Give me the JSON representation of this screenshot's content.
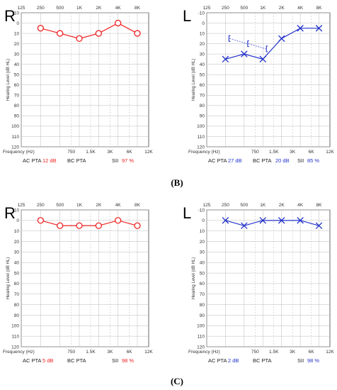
{
  "panel_labels": [
    "(B)",
    "(C)"
  ],
  "colors": {
    "right": "#ee2222",
    "left": "#2233cc"
  },
  "chart_data": [
    {
      "type": "line",
      "side": "R",
      "marker": "circle",
      "color": "#ee2222",
      "xlabel": "Frequency (Hz)",
      "ylabel": "Hearing Level (dB HL)",
      "top_ticks": [
        "125",
        "250",
        "500",
        "1K",
        "2K",
        "4K",
        "8K"
      ],
      "bottom_ticks": [
        "750",
        "1.5K",
        "3K",
        "6K",
        "12K"
      ],
      "ylim": [
        -10,
        120
      ],
      "y_ticks": [
        -10,
        0,
        10,
        20,
        30,
        40,
        50,
        60,
        70,
        80,
        90,
        100,
        110,
        120
      ],
      "y_tick_labels": [
        "-10",
        "0",
        "10",
        "20",
        "30",
        "40",
        "50",
        "60",
        "70",
        "80",
        "90",
        "100",
        "110",
        "120"
      ],
      "grid": true,
      "series": [
        {
          "x": [
            "250",
            "500",
            "1K",
            "2K",
            "4K",
            "8K"
          ],
          "values": [
            5,
            10,
            15,
            10,
            0,
            10
          ]
        }
      ],
      "stats": [
        {
          "label": "AC PTA",
          "value": "12 dB"
        },
        {
          "label": "BC PTA",
          "value": ""
        },
        {
          "label": "SII",
          "value": "97 %"
        }
      ]
    },
    {
      "type": "line",
      "side": "L",
      "marker": "x",
      "color": "#2233cc",
      "xlabel": "Frequency (Hz)",
      "ylabel": "Hearing Level (dB HL)",
      "top_ticks": [
        "125",
        "250",
        "500",
        "1K",
        "2K",
        "4K",
        "8K"
      ],
      "bottom_ticks": [
        "750",
        "1.5K",
        "3K",
        "6K",
        "12K"
      ],
      "ylim": [
        -10,
        120
      ],
      "y_ticks": [
        -10,
        0,
        10,
        20,
        30,
        40,
        50,
        60,
        70,
        80,
        90,
        100,
        110,
        120
      ],
      "y_tick_labels": [
        "-10",
        "0",
        "10",
        "20",
        "30",
        "40",
        "50",
        "60",
        "70",
        "80",
        "90",
        "100",
        "110",
        "120"
      ],
      "grid": true,
      "series": [
        {
          "x": [
            "250",
            "500",
            "1K",
            "2K",
            "4K",
            "8K"
          ],
          "values": [
            35,
            30,
            35,
            15,
            5,
            5
          ]
        }
      ],
      "bone_conduction": {
        "marker": "bracket",
        "x": [
          "250",
          "500",
          "1K"
        ],
        "values": [
          15,
          20,
          25
        ]
      },
      "stats": [
        {
          "label": "AC PTA",
          "value": "27 dB"
        },
        {
          "label": "BC PTA",
          "value": "20 dB"
        },
        {
          "label": "SII",
          "value": "85 %"
        }
      ]
    },
    {
      "type": "line",
      "side": "R",
      "marker": "circle",
      "color": "#ee2222",
      "xlabel": "Frequency (Hz)",
      "ylabel": "Hearing Level (dB HL)",
      "top_ticks": [
        "125",
        "250",
        "500",
        "1K",
        "2K",
        "4K",
        "8K"
      ],
      "bottom_ticks": [
        "750",
        "1.5K",
        "3K",
        "6K",
        "12K"
      ],
      "ylim": [
        -10,
        120
      ],
      "y_ticks": [
        -10,
        0,
        10,
        20,
        30,
        40,
        50,
        60,
        70,
        80,
        90,
        100,
        110,
        120
      ],
      "y_tick_labels": [
        "-10",
        "0",
        "10",
        "20",
        "30",
        "40",
        "50",
        "60",
        "70",
        "80",
        "90",
        "100",
        "110",
        "120"
      ],
      "grid": true,
      "series": [
        {
          "x": [
            "250",
            "500",
            "1K",
            "2K",
            "4K",
            "8K"
          ],
          "values": [
            0,
            5,
            5,
            5,
            0,
            5
          ]
        }
      ],
      "stats": [
        {
          "label": "AC PTA",
          "value": "5 dB"
        },
        {
          "label": "BC PTA",
          "value": ""
        },
        {
          "label": "SII",
          "value": "98 %"
        }
      ]
    },
    {
      "type": "line",
      "side": "L",
      "marker": "x",
      "color": "#2233cc",
      "xlabel": "Frequency (Hz)",
      "ylabel": "Hearing Level (dB HL)",
      "top_ticks": [
        "125",
        "250",
        "500",
        "1K",
        "2K",
        "4K",
        "8K"
      ],
      "bottom_ticks": [
        "750",
        "1.5K",
        "3K",
        "6K",
        "12K"
      ],
      "ylim": [
        -10,
        120
      ],
      "y_ticks": [
        -10,
        0,
        10,
        20,
        30,
        40,
        50,
        60,
        70,
        80,
        90,
        100,
        110,
        120
      ],
      "y_tick_labels": [
        "-10",
        "0",
        "10",
        "20",
        "30",
        "40",
        "50",
        "60",
        "70",
        "80",
        "90",
        "100",
        "110",
        "120"
      ],
      "grid": true,
      "series": [
        {
          "x": [
            "250",
            "500",
            "1K",
            "2K",
            "4K",
            "8K"
          ],
          "values": [
            0,
            5,
            0,
            0,
            0,
            5
          ]
        }
      ],
      "stats": [
        {
          "label": "AC PTA",
          "value": "2 dB"
        },
        {
          "label": "BC PTA",
          "value": ""
        },
        {
          "label": "SII",
          "value": "98 %"
        }
      ]
    }
  ]
}
